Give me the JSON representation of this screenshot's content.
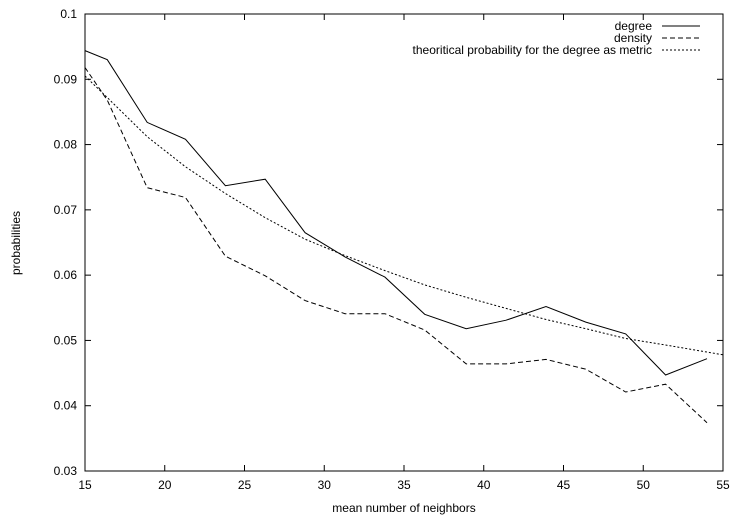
{
  "chart_data": {
    "type": "line",
    "title": "",
    "xlabel": "mean number of neighbors",
    "ylabel": "probabilities",
    "xlim": [
      15,
      55
    ],
    "ylim": [
      0.03,
      0.1
    ],
    "xticks": [
      15,
      20,
      25,
      30,
      35,
      40,
      45,
      50,
      55
    ],
    "yticks": [
      0.03,
      0.04,
      0.05,
      0.06,
      0.07,
      0.08,
      0.09,
      0.1
    ],
    "xtick_labels": [
      "15",
      "20",
      "25",
      "30",
      "35",
      "40",
      "45",
      "50",
      "55"
    ],
    "ytick_labels": [
      "0.03",
      "0.04",
      "0.05",
      "0.06",
      "0.07",
      "0.08",
      "0.09",
      "0.1"
    ],
    "grid": false,
    "legend_position": "top-right",
    "series": [
      {
        "name": "degree",
        "dash": "solid",
        "x": [
          15,
          16.4,
          18.9,
          21.3,
          23.8,
          26.3,
          28.8,
          31.3,
          33.8,
          36.3,
          38.9,
          41.4,
          43.9,
          46.4,
          48.9,
          51.4,
          54
        ],
        "y": [
          0.0944,
          0.093,
          0.0834,
          0.0808,
          0.0737,
          0.0747,
          0.0665,
          0.0628,
          0.0597,
          0.054,
          0.0518,
          0.0531,
          0.0552,
          0.0528,
          0.051,
          0.0447,
          0.0472
        ]
      },
      {
        "name": "density",
        "dash": "dashed",
        "x": [
          15,
          16.4,
          18.9,
          21.3,
          23.8,
          26.3,
          28.8,
          31.3,
          33.8,
          36.3,
          38.9,
          41.4,
          43.9,
          46.4,
          48.9,
          51.4,
          54
        ],
        "y": [
          0.0918,
          0.0868,
          0.0734,
          0.0719,
          0.0629,
          0.0599,
          0.0561,
          0.0541,
          0.0541,
          0.0516,
          0.0464,
          0.0464,
          0.0471,
          0.0456,
          0.0421,
          0.0433,
          0.0374
        ]
      },
      {
        "name": "theoritical probability for the degree as metric",
        "dash": "dotted",
        "x": [
          15,
          16.4,
          18.9,
          21.3,
          23.8,
          26.3,
          28.8,
          31.3,
          33.8,
          36.3,
          38.9,
          41.4,
          43.9,
          46.4,
          48.9,
          51.4,
          55
        ],
        "y": [
          0.0905,
          0.0872,
          0.0812,
          0.0766,
          0.0725,
          0.0688,
          0.0655,
          0.063,
          0.0607,
          0.0585,
          0.0566,
          0.0549,
          0.0532,
          0.0518,
          0.0503,
          0.0493,
          0.0478
        ]
      }
    ]
  }
}
